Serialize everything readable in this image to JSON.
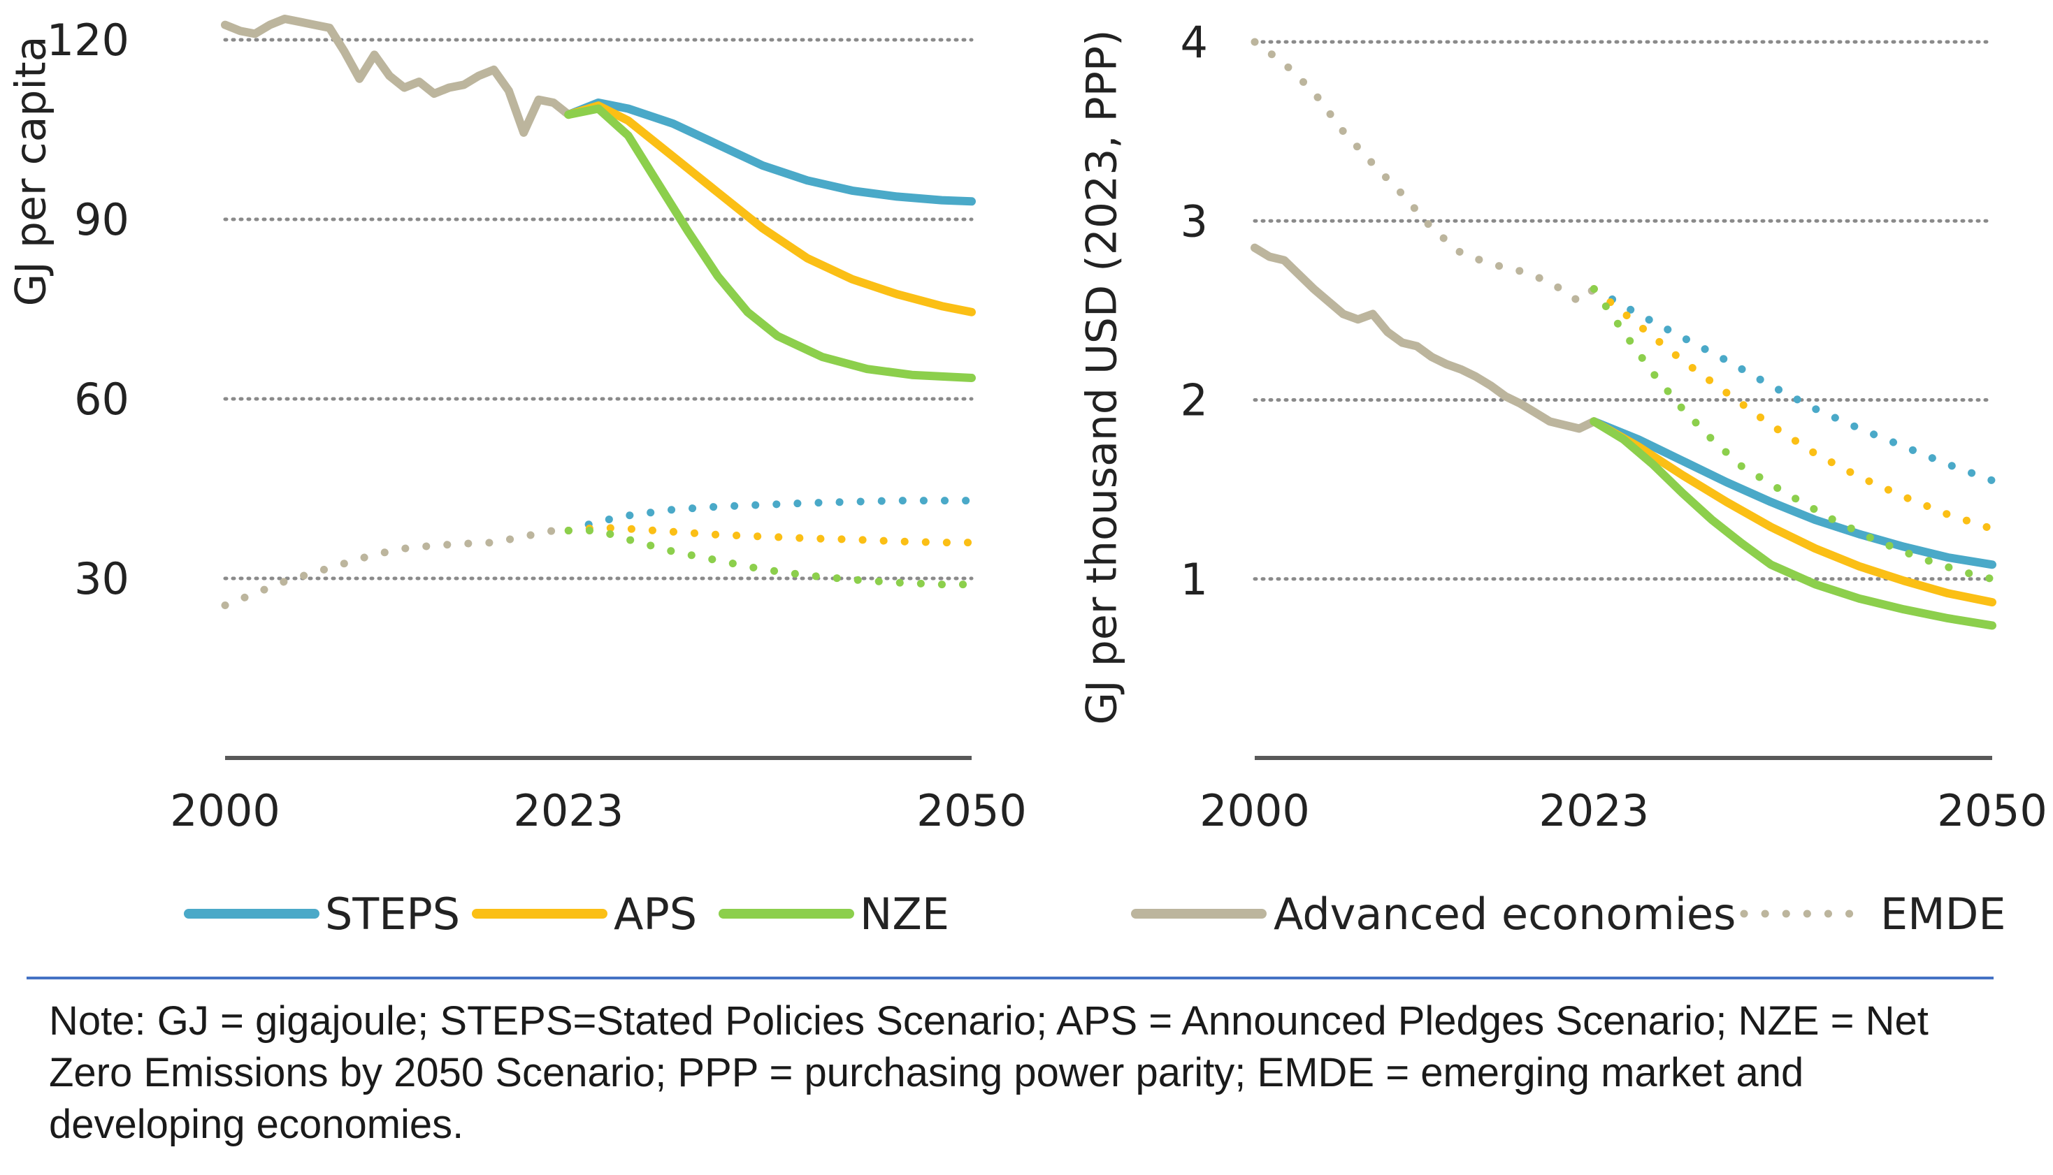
{
  "colors": {
    "steps": "#4aa9c8",
    "aps": "#fbbf15",
    "nze": "#8ccf4c",
    "advanced": "#bcb59d",
    "emde": "#bcb59d",
    "axis": "#595959",
    "grid": "#8a8a8a",
    "separator": "#4472c4"
  },
  "chart_data": [
    {
      "type": "line",
      "ylabel": "GJ per capita",
      "xlim": [
        2000,
        2050
      ],
      "ylim": [
        0,
        123
      ],
      "yticks": [
        30,
        60,
        90,
        120
      ],
      "xticks": [
        2000,
        2023,
        2050
      ],
      "ytick_labels": [
        "30",
        "60",
        "90",
        "120"
      ],
      "xtick_labels": [
        "2000",
        "2023",
        "2050"
      ],
      "grid": true,
      "series": [
        {
          "name": "Advanced economies (historical)",
          "style": "solid",
          "color_key": "advanced",
          "x": [
            2000,
            2001,
            2002,
            2003,
            2004,
            2005,
            2006,
            2007,
            2008,
            2009,
            2010,
            2011,
            2012,
            2013,
            2014,
            2015,
            2016,
            2017,
            2018,
            2019,
            2020,
            2021,
            2022,
            2023
          ],
          "y": [
            122.5,
            121.5,
            121,
            122.5,
            123.5,
            123,
            122.5,
            122,
            118,
            113.5,
            117.5,
            114,
            112,
            113,
            111,
            112,
            112.5,
            114,
            115,
            111.5,
            104.5,
            110,
            109.5,
            107.5
          ]
        },
        {
          "name": "STEPS (Advanced)",
          "style": "solid",
          "color_key": "steps",
          "x": [
            2023,
            2025,
            2027,
            2030,
            2033,
            2036,
            2039,
            2042,
            2045,
            2048,
            2050
          ],
          "y": [
            107.5,
            109.5,
            108.5,
            106,
            102.5,
            99,
            96.5,
            94.8,
            93.8,
            93.2,
            93
          ]
        },
        {
          "name": "APS (Advanced)",
          "style": "solid",
          "color_key": "aps",
          "x": [
            2023,
            2025,
            2027,
            2030,
            2033,
            2036,
            2039,
            2042,
            2045,
            2048,
            2050
          ],
          "y": [
            107.5,
            109,
            106.5,
            100.5,
            94.5,
            88.5,
            83.5,
            80,
            77.5,
            75.5,
            74.5
          ]
        },
        {
          "name": "NZE (Advanced)",
          "style": "solid",
          "color_key": "nze",
          "x": [
            2023,
            2025,
            2027,
            2029,
            2031,
            2033,
            2035,
            2037,
            2040,
            2043,
            2046,
            2050
          ],
          "y": [
            107.5,
            108.5,
            104,
            96,
            88,
            80.5,
            74.5,
            70.5,
            67,
            65,
            64,
            63.5
          ]
        },
        {
          "name": "EMDE (historical)",
          "style": "dotted",
          "color_key": "emde",
          "x": [
            2000,
            2002,
            2004,
            2006,
            2008,
            2010,
            2012,
            2014,
            2016,
            2018,
            2020,
            2022,
            2023
          ],
          "y": [
            25.5,
            27.5,
            29.5,
            31,
            32.5,
            34,
            35,
            35.5,
            35.8,
            36,
            37,
            38,
            38
          ]
        },
        {
          "name": "STEPS (EMDE)",
          "style": "dotted",
          "color_key": "steps",
          "x": [
            2023,
            2025,
            2027,
            2030,
            2033,
            2036,
            2039,
            2042,
            2045,
            2048,
            2050
          ],
          "y": [
            38,
            39.5,
            40.5,
            41.5,
            42,
            42.3,
            42.6,
            42.8,
            43,
            43,
            43
          ]
        },
        {
          "name": "APS (EMDE)",
          "style": "dotted",
          "color_key": "aps",
          "x": [
            2023,
            2025,
            2027,
            2030,
            2033,
            2036,
            2039,
            2042,
            2045,
            2048,
            2050
          ],
          "y": [
            38,
            38.5,
            38.3,
            37.8,
            37.3,
            37,
            36.7,
            36.5,
            36.2,
            36,
            36
          ]
        },
        {
          "name": "NZE (EMDE)",
          "style": "dotted",
          "color_key": "nze",
          "x": [
            2023,
            2025,
            2027,
            2030,
            2033,
            2036,
            2039,
            2042,
            2045,
            2048,
            2050
          ],
          "y": [
            38,
            38,
            36.5,
            34.5,
            33,
            31.5,
            30.5,
            29.8,
            29.3,
            29,
            29
          ]
        }
      ]
    },
    {
      "type": "line",
      "ylabel": "GJ per thousand USD (2023, PPP)",
      "xlim": [
        2000,
        2050
      ],
      "ylim": [
        0,
        4
      ],
      "yticks": [
        1,
        2,
        3,
        4
      ],
      "xticks": [
        2000,
        2023,
        2050
      ],
      "ytick_labels": [
        "1",
        "2",
        "3",
        "4"
      ],
      "xtick_labels": [
        "2000",
        "2023",
        "2050"
      ],
      "grid": true,
      "series": [
        {
          "name": "Advanced economies (historical)",
          "style": "solid",
          "color_key": "advanced",
          "x": [
            2000,
            2001,
            2002,
            2003,
            2004,
            2005,
            2006,
            2007,
            2008,
            2009,
            2010,
            2011,
            2012,
            2013,
            2014,
            2015,
            2016,
            2017,
            2018,
            2019,
            2020,
            2021,
            2022,
            2023
          ],
          "y": [
            2.85,
            2.8,
            2.78,
            2.7,
            2.62,
            2.55,
            2.48,
            2.45,
            2.48,
            2.38,
            2.32,
            2.3,
            2.24,
            2.2,
            2.17,
            2.13,
            2.08,
            2.02,
            1.98,
            1.93,
            1.88,
            1.86,
            1.84,
            1.88
          ]
        },
        {
          "name": "STEPS (Advanced)",
          "style": "solid",
          "color_key": "steps",
          "x": [
            2023,
            2026,
            2029,
            2032,
            2035,
            2038,
            2041,
            2044,
            2047,
            2050
          ],
          "y": [
            1.88,
            1.78,
            1.66,
            1.54,
            1.43,
            1.33,
            1.25,
            1.18,
            1.12,
            1.08
          ]
        },
        {
          "name": "APS (Advanced)",
          "style": "solid",
          "color_key": "aps",
          "x": [
            2023,
            2026,
            2029,
            2032,
            2035,
            2038,
            2041,
            2044,
            2047,
            2050
          ],
          "y": [
            1.88,
            1.74,
            1.58,
            1.43,
            1.29,
            1.17,
            1.07,
            0.99,
            0.92,
            0.87
          ]
        },
        {
          "name": "NZE (Advanced)",
          "style": "solid",
          "color_key": "nze",
          "x": [
            2023,
            2025,
            2027,
            2029,
            2031,
            2033,
            2035,
            2038,
            2041,
            2044,
            2047,
            2050
          ],
          "y": [
            1.88,
            1.78,
            1.64,
            1.48,
            1.33,
            1.2,
            1.08,
            0.97,
            0.89,
            0.83,
            0.78,
            0.74
          ]
        },
        {
          "name": "EMDE (historical)",
          "style": "dotted",
          "color_key": "emde",
          "x": [
            2000,
            2002,
            2004,
            2006,
            2008,
            2010,
            2012,
            2014,
            2016,
            2018,
            2020,
            2022,
            2023
          ],
          "y": [
            4,
            3.88,
            3.72,
            3.5,
            3.32,
            3.15,
            2.96,
            2.82,
            2.76,
            2.72,
            2.66,
            2.55,
            2.62
          ]
        },
        {
          "name": "STEPS (EMDE)",
          "style": "dotted",
          "color_key": "steps",
          "x": [
            2023,
            2026,
            2029,
            2032,
            2035,
            2038,
            2041,
            2044,
            2047,
            2050
          ],
          "y": [
            2.62,
            2.48,
            2.35,
            2.22,
            2.08,
            1.95,
            1.84,
            1.74,
            1.64,
            1.55
          ]
        },
        {
          "name": "APS (EMDE)",
          "style": "dotted",
          "color_key": "aps",
          "x": [
            2023,
            2026,
            2029,
            2032,
            2035,
            2038,
            2041,
            2044,
            2047,
            2050
          ],
          "y": [
            2.62,
            2.42,
            2.22,
            2.04,
            1.86,
            1.7,
            1.57,
            1.46,
            1.36,
            1.28
          ]
        },
        {
          "name": "NZE (EMDE)",
          "style": "dotted",
          "color_key": "nze",
          "x": [
            2023,
            2025,
            2027,
            2029,
            2031,
            2033,
            2036,
            2039,
            2042,
            2045,
            2048,
            2050
          ],
          "y": [
            2.62,
            2.38,
            2.15,
            1.95,
            1.78,
            1.63,
            1.48,
            1.34,
            1.22,
            1.12,
            1.04,
            1.0
          ]
        }
      ]
    }
  ],
  "legend": {
    "items": [
      {
        "key": "steps",
        "label": "STEPS",
        "style": "solid"
      },
      {
        "key": "aps",
        "label": "APS",
        "style": "solid"
      },
      {
        "key": "nze",
        "label": "NZE",
        "style": "solid"
      },
      {
        "key": "advanced",
        "label": "Advanced economies",
        "style": "solid"
      },
      {
        "key": "emde",
        "label": "EMDE",
        "style": "dotted"
      }
    ]
  },
  "note": "Note: GJ = gigajoule; STEPS=Stated Policies Scenario; APS = Announced Pledges Scenario; NZE = Net Zero Emissions by 2050 Scenario; PPP = purchasing power parity; EMDE = emerging market and developing economies."
}
